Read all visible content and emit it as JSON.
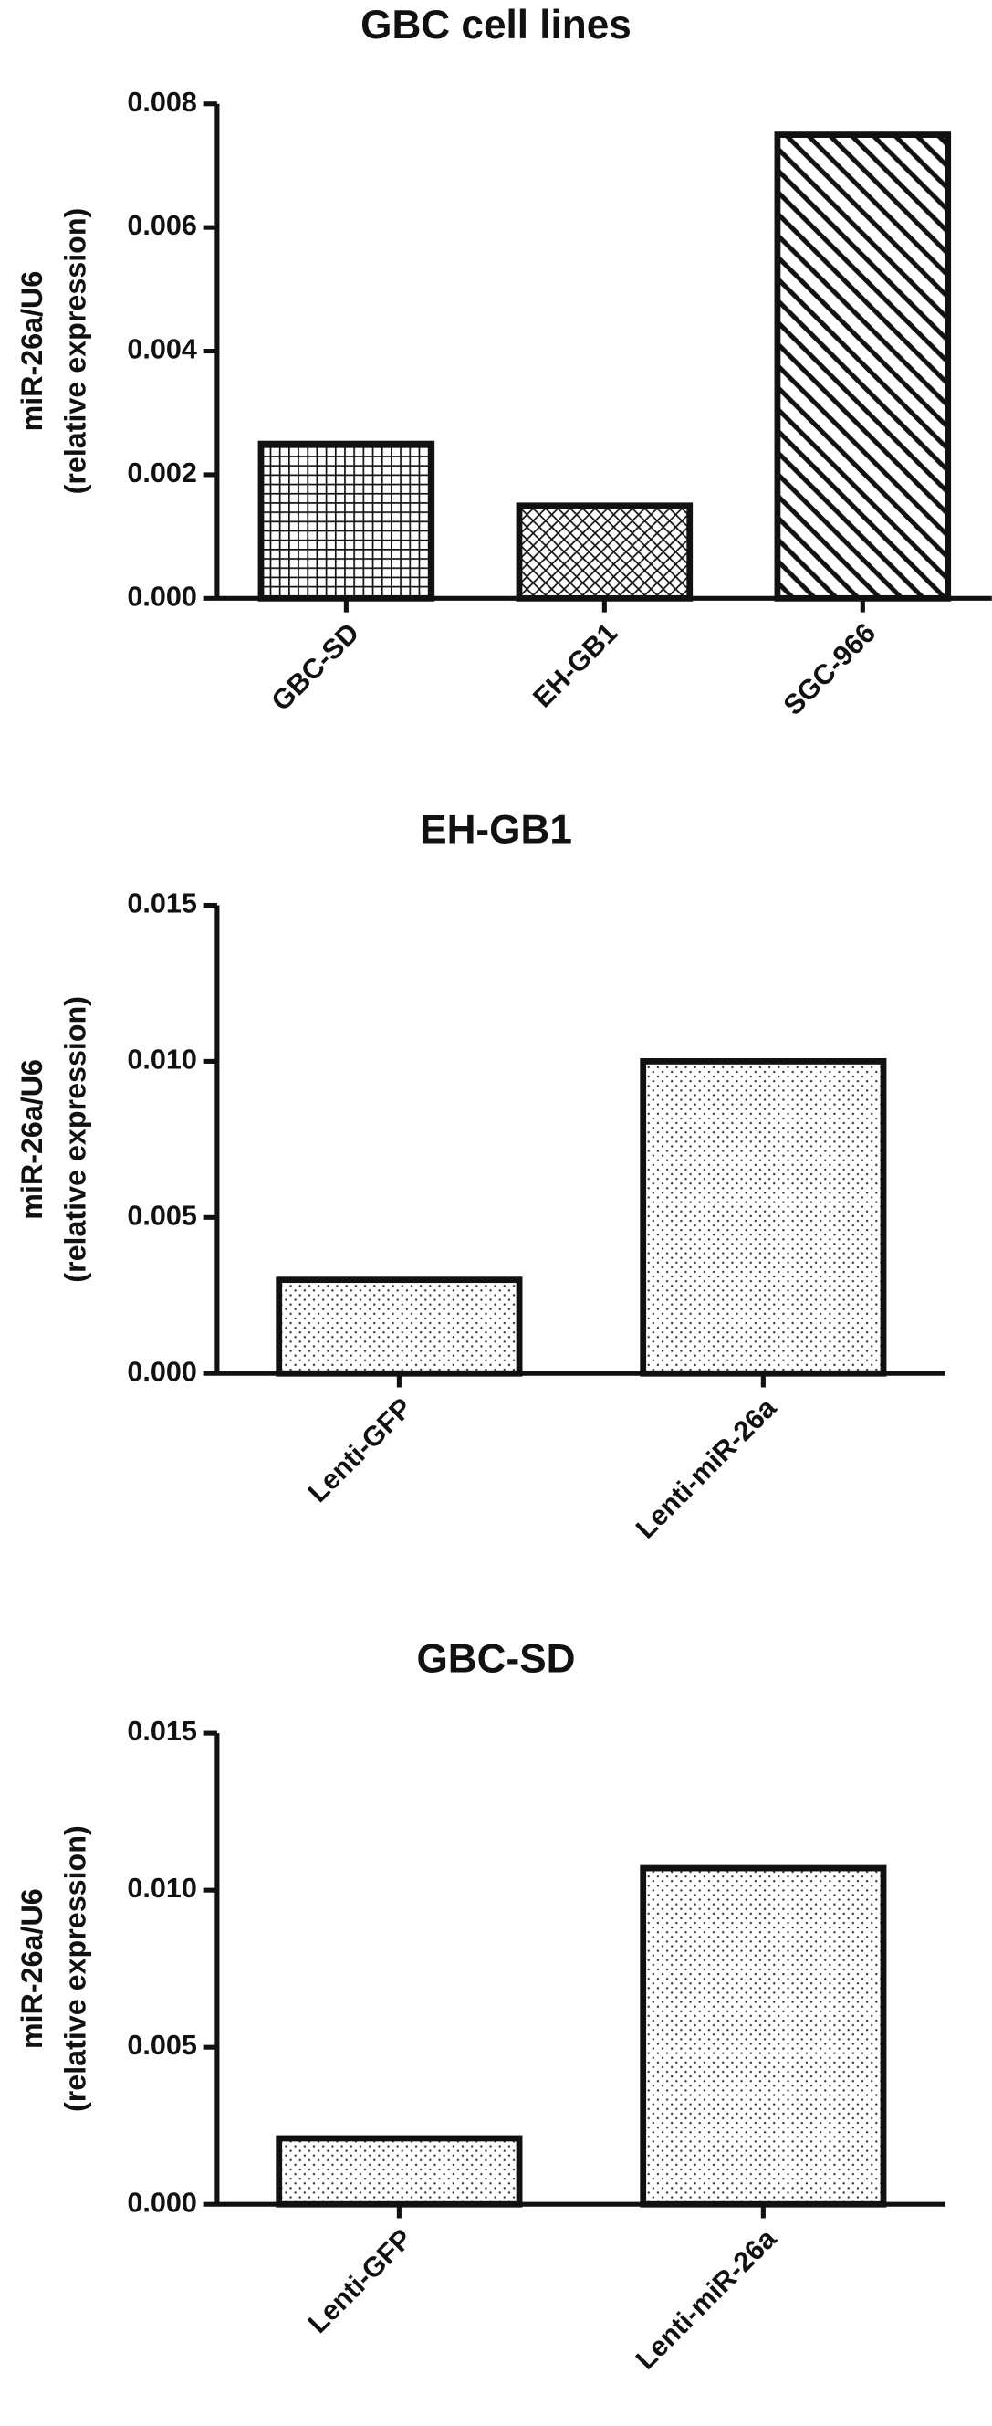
{
  "chart_data": [
    {
      "type": "bar",
      "title": "GBC cell lines",
      "ylabel": [
        "miR-26a/U6",
        "(relative expression)"
      ],
      "categories": [
        "GBC-SD",
        "EH-GB1",
        "SGC-966"
      ],
      "values": [
        0.0025,
        0.0015,
        0.0075
      ],
      "patterns": [
        "grid",
        "brick",
        "diagonal"
      ],
      "color": "#111111",
      "ylim": [
        0,
        0.008
      ],
      "yticks": [
        {
          "value": 0,
          "label": "0.000"
        },
        {
          "value": 0.002,
          "label": "0.002"
        },
        {
          "value": 0.004,
          "label": "0.004"
        },
        {
          "value": 0.006,
          "label": "0.006"
        },
        {
          "value": 0.008,
          "label": "0.008"
        }
      ]
    },
    {
      "type": "bar",
      "title": "EH-GB1",
      "ylabel": [
        "miR-26a/U6",
        "(relative expression)"
      ],
      "categories": [
        "Lenti-GFP",
        "Lenti-miR-26a"
      ],
      "values": [
        0.003,
        0.01
      ],
      "patterns": [
        "dots",
        "dots"
      ],
      "color": "#111111",
      "ylim": [
        0,
        0.015
      ],
      "yticks": [
        {
          "value": 0,
          "label": "0.000"
        },
        {
          "value": 0.005,
          "label": "0.005"
        },
        {
          "value": 0.01,
          "label": "0.010"
        },
        {
          "value": 0.015,
          "label": "0.015"
        }
      ]
    },
    {
      "type": "bar",
      "title": "GBC-SD",
      "ylabel": [
        "miR-26a/U6",
        "(relative expression)"
      ],
      "categories": [
        "Lenti-GFP",
        "Lenti-miR-26a"
      ],
      "values": [
        0.0021,
        0.0107
      ],
      "patterns": [
        "dots",
        "dots"
      ],
      "color": "#111111",
      "ylim": [
        0,
        0.015
      ],
      "yticks": [
        {
          "value": 0,
          "label": "0.000"
        },
        {
          "value": 0.005,
          "label": "0.005"
        },
        {
          "value": 0.01,
          "label": "0.010"
        },
        {
          "value": 0.015,
          "label": "0.015"
        }
      ]
    }
  ]
}
